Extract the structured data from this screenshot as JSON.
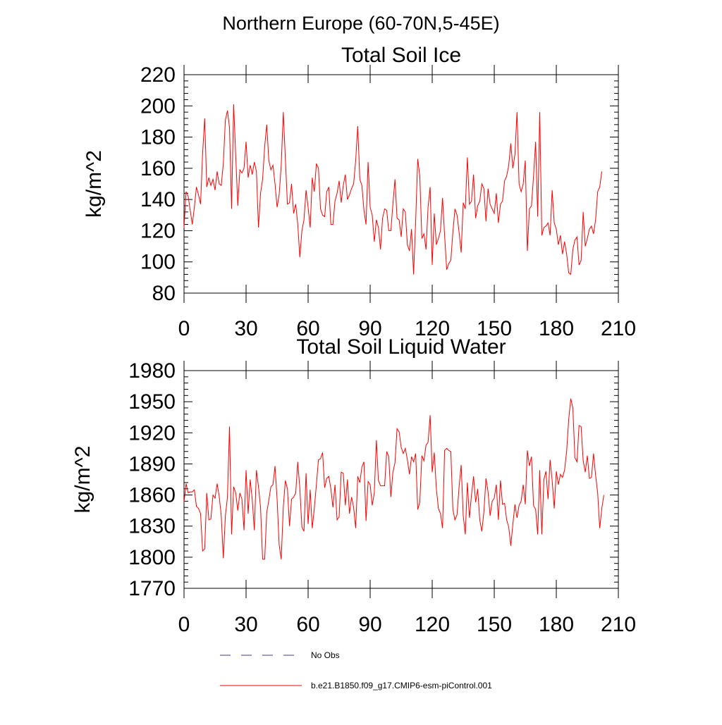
{
  "figure": {
    "suptitle": "Northern Europe (60-70N,5-45E)"
  },
  "legend": {
    "entries": [
      {
        "label": "No Obs",
        "style": "dashed",
        "color": "#3b3b8f"
      },
      {
        "label": "b.e21.B1850.f09_g17.CMIP6-esm-piControl.001",
        "style": "solid",
        "color": "#ff0000"
      }
    ]
  },
  "chart_data": [
    {
      "type": "line",
      "title": "Total Soil Ice",
      "ylabel": "kg/m^2",
      "xlabel": "",
      "xlim": [
        0,
        210
      ],
      "ylim": [
        80,
        220
      ],
      "xticks": [
        0,
        30,
        60,
        90,
        120,
        150,
        180,
        210
      ],
      "yticks": [
        80,
        100,
        120,
        140,
        160,
        180,
        200,
        220
      ],
      "x_start": 0,
      "x_step": 1,
      "series": [
        {
          "name": "b.e21.B1850.f09_g17.CMIP6-esm-piControl.001",
          "color": "#ff0000",
          "values": [
            122,
            145,
            142,
            133,
            124,
            135,
            148,
            143,
            137,
            170,
            192,
            148,
            154,
            149,
            153,
            146,
            158,
            150,
            149,
            163,
            191,
            197,
            186,
            134,
            201,
            168,
            136,
            159,
            157,
            160,
            177,
            154,
            162,
            156,
            164,
            158,
            122,
            144,
            153,
            174,
            188,
            165,
            159,
            162,
            150,
            135,
            143,
            162,
            196,
            166,
            137,
            138,
            150,
            131,
            137,
            124,
            103,
            120,
            127,
            146,
            135,
            122,
            154,
            145,
            163,
            160,
            134,
            130,
            129,
            145,
            148,
            124,
            124,
            139,
            144,
            152,
            138,
            149,
            156,
            140,
            143,
            147,
            150,
            165,
            187,
            153,
            149,
            133,
            124,
            164,
            135,
            130,
            113,
            127,
            122,
            108,
            128,
            134,
            133,
            120,
            120,
            137,
            153,
            128,
            127,
            116,
            134,
            132,
            111,
            107,
            121,
            92,
            126,
            166,
            155,
            115,
            118,
            108,
            135,
            148,
            98,
            131,
            111,
            115,
            120,
            141,
            117,
            95,
            99,
            101,
            119,
            134,
            130,
            119,
            106,
            138,
            134,
            167,
            137,
            139,
            156,
            128,
            136,
            139,
            150,
            147,
            126,
            147,
            137,
            134,
            131,
            144,
            125,
            137,
            139,
            152,
            155,
            162,
            176,
            160,
            169,
            196,
            150,
            145,
            150,
            165,
            107,
            134,
            136,
            155,
            177,
            129,
            196,
            117,
            122,
            123,
            125,
            117,
            146,
            125,
            121,
            111,
            117,
            105,
            113,
            105,
            93,
            92,
            108,
            114,
            116,
            98,
            101,
            132,
            110,
            115,
            121,
            123,
            118,
            127,
            145,
            148,
            158
          ]
        }
      ]
    },
    {
      "type": "line",
      "title": "Total Soil Liquid Water",
      "ylabel": "kg/m^2",
      "xlabel": "",
      "xlim": [
        0,
        210
      ],
      "ylim": [
        1770,
        1980
      ],
      "xticks": [
        0,
        30,
        60,
        90,
        120,
        150,
        180,
        210
      ],
      "yticks": [
        1770,
        1800,
        1830,
        1860,
        1890,
        1920,
        1950,
        1980
      ],
      "x_start": 0,
      "x_step": 1,
      "series": [
        {
          "name": "b.e21.B1850.f09_g17.CMIP6-esm-piControl.001",
          "color": "#ff0000",
          "values": [
            1853,
            1871,
            1862,
            1863,
            1863,
            1865,
            1849,
            1847,
            1842,
            1806,
            1808,
            1862,
            1836,
            1837,
            1860,
            1857,
            1871,
            1859,
            1840,
            1799,
            1840,
            1858,
            1926,
            1822,
            1868,
            1862,
            1845,
            1862,
            1856,
            1826,
            1884,
            1842,
            1875,
            1855,
            1826,
            1884,
            1868,
            1848,
            1798,
            1798,
            1843,
            1855,
            1868,
            1870,
            1888,
            1856,
            1812,
            1798,
            1848,
            1874,
            1866,
            1830,
            1856,
            1858,
            1862,
            1892,
            1866,
            1829,
            1825,
            1881,
            1832,
            1865,
            1828,
            1847,
            1870,
            1894,
            1895,
            1901,
            1867,
            1876,
            1878,
            1866,
            1848,
            1870,
            1836,
            1839,
            1882,
            1881,
            1850,
            1875,
            1842,
            1858,
            1848,
            1828,
            1878,
            1872,
            1887,
            1892,
            1835,
            1873,
            1870,
            1850,
            1862,
            1913,
            1874,
            1869,
            1869,
            1869,
            1902,
            1897,
            1858,
            1882,
            1891,
            1924,
            1921,
            1906,
            1900,
            1905,
            1894,
            1880,
            1897,
            1892,
            1900,
            1846,
            1853,
            1898,
            1893,
            1908,
            1911,
            1937,
            1882,
            1901,
            1866,
            1847,
            1842,
            1828,
            1903,
            1905,
            1903,
            1902,
            1846,
            1836,
            1841,
            1868,
            1889,
            1840,
            1822,
            1872,
            1838,
            1860,
            1878,
            1853,
            1866,
            1836,
            1825,
            1844,
            1876,
            1863,
            1840,
            1854,
            1857,
            1870,
            1836,
            1874,
            1851,
            1852,
            1836,
            1829,
            1811,
            1832,
            1851,
            1838,
            1850,
            1854,
            1870,
            1851,
            1903,
            1888,
            1897,
            1850,
            1846,
            1822,
            1884,
            1822,
            1875,
            1883,
            1856,
            1894,
            1874,
            1847,
            1883,
            1870,
            1880,
            1877,
            1884,
            1902,
            1933,
            1953,
            1944,
            1896,
            1892,
            1927,
            1926,
            1893,
            1882,
            1898,
            1876,
            1877,
            1900,
            1879,
            1862,
            1828,
            1847,
            1860
          ]
        }
      ]
    }
  ]
}
